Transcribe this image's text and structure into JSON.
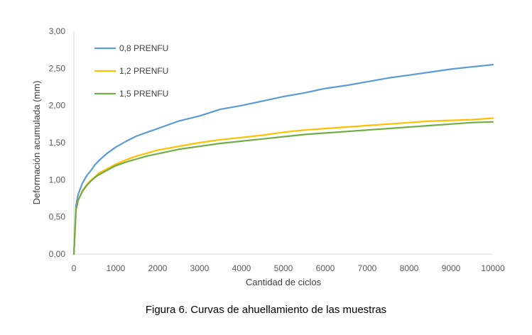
{
  "chart_data": {
    "type": "line",
    "title": "",
    "xlabel": "Cantidad de ciclos",
    "ylabel": "Deformación acumulada (mm)",
    "xlim": [
      0,
      10000
    ],
    "ylim": [
      0,
      3
    ],
    "xticks": [
      "0",
      "1000",
      "2000",
      "3000",
      "4000",
      "5000",
      "6000",
      "7000",
      "8000",
      "9000",
      "10000"
    ],
    "yticks": [
      "0,00",
      "0,50",
      "1,00",
      "1,50",
      "2,00",
      "2,50",
      "3,00"
    ],
    "grid": false,
    "legend_position": "top-left",
    "series": [
      {
        "name": "0,8 PRENFU",
        "color": "#5b9bd5",
        "x": [
          0,
          50,
          100,
          200,
          300,
          400,
          500,
          600,
          800,
          1000,
          1250,
          1500,
          1750,
          2000,
          2500,
          3000,
          3500,
          4000,
          4500,
          5000,
          5500,
          6000,
          6500,
          7000,
          7500,
          8000,
          8500,
          9000,
          9500,
          10000
        ],
        "y": [
          0,
          0.65,
          0.8,
          0.95,
          1.05,
          1.12,
          1.2,
          1.26,
          1.36,
          1.44,
          1.52,
          1.59,
          1.64,
          1.69,
          1.79,
          1.86,
          1.95,
          2.0,
          2.06,
          2.12,
          2.17,
          2.23,
          2.27,
          2.32,
          2.37,
          2.41,
          2.45,
          2.49,
          2.52,
          2.55
        ]
      },
      {
        "name": "1,2 PRENFU",
        "color": "#ffc000",
        "x": [
          0,
          50,
          100,
          200,
          300,
          400,
          500,
          600,
          800,
          1000,
          1250,
          1500,
          1750,
          2000,
          2500,
          3000,
          3500,
          4000,
          4500,
          5000,
          5500,
          6000,
          6500,
          7000,
          7500,
          8000,
          8500,
          9000,
          9500,
          10000
        ],
        "y": [
          0,
          0.6,
          0.72,
          0.85,
          0.93,
          0.99,
          1.04,
          1.09,
          1.15,
          1.21,
          1.27,
          1.32,
          1.36,
          1.4,
          1.45,
          1.5,
          1.54,
          1.57,
          1.6,
          1.64,
          1.67,
          1.69,
          1.71,
          1.73,
          1.75,
          1.77,
          1.79,
          1.8,
          1.81,
          1.83
        ]
      },
      {
        "name": "1,5 PRENFU",
        "color": "#70ad47",
        "x": [
          0,
          50,
          100,
          200,
          300,
          400,
          500,
          600,
          800,
          1000,
          1250,
          1500,
          1750,
          2000,
          2500,
          3000,
          3500,
          4000,
          4500,
          5000,
          5500,
          6000,
          6500,
          7000,
          7500,
          8000,
          8500,
          9000,
          9500,
          10000
        ],
        "y": [
          0,
          0.6,
          0.72,
          0.84,
          0.92,
          0.98,
          1.03,
          1.07,
          1.13,
          1.19,
          1.24,
          1.28,
          1.32,
          1.35,
          1.41,
          1.45,
          1.49,
          1.52,
          1.55,
          1.58,
          1.61,
          1.63,
          1.65,
          1.67,
          1.69,
          1.71,
          1.73,
          1.75,
          1.77,
          1.78
        ]
      }
    ]
  },
  "caption": "Figura 6. Curvas de ahuellamiento de las muestras"
}
